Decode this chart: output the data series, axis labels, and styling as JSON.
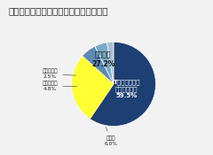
{
  "title": "普段、就寝時は何を着用していますか？",
  "labels": [
    "Tシャツと動き\nやすいパンツ",
    "パジャマ",
    "その他",
    "スウェット",
    "ネグリジェ"
  ],
  "values": [
    59.5,
    27.2,
    6.0,
    4.8,
    2.5
  ],
  "colors": [
    "#1e3f72",
    "#ffff33",
    "#5b8ab5",
    "#7aaac8",
    "#aac0d5"
  ],
  "startangle": 90,
  "title_fontsize": 7.5,
  "background_color": "#f2f2f2"
}
